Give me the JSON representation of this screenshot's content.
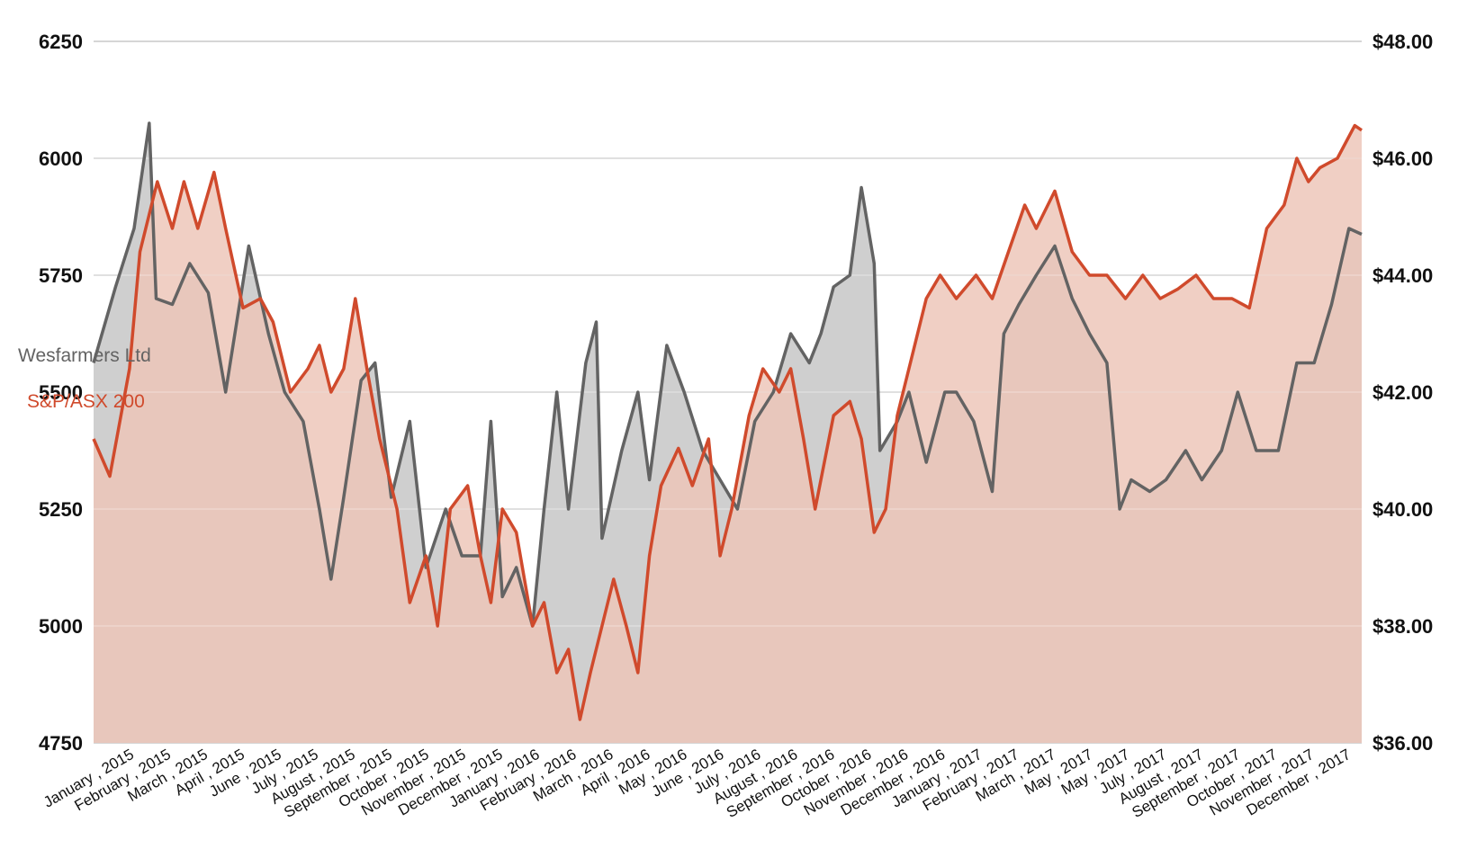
{
  "chart_data": {
    "type": "area",
    "x_ticks": [
      "January , 2015",
      "February , 2015",
      "March , 2015",
      "April , 2015",
      "June , 2015",
      "July , 2015",
      "August , 2015",
      "September , 2015",
      "October , 2015",
      "November , 2015",
      "December , 2015",
      "January , 2016",
      "February , 2016",
      "March , 2016",
      "April , 2016",
      "May , 2016",
      "June , 2016",
      "July , 2016",
      "August , 2016",
      "September , 2016",
      "October , 2016",
      "November , 2016",
      "December , 2016",
      "January , 2017",
      "February , 2017",
      "March , 2017",
      "May , 2017",
      "May , 2017",
      "July , 2017",
      "August , 2017",
      "September , 2017",
      "October , 2017",
      "November , 2017",
      "December , 2017"
    ],
    "y_left": {
      "ticks": [
        "6250",
        "6000",
        "5750",
        "5500",
        "5250",
        "5000",
        "4750"
      ],
      "min": 4750,
      "max": 6250
    },
    "y_right": {
      "ticks": [
        "$48.00",
        "$46.00",
        "$44.00",
        "$42.00",
        "$40.00",
        "$38.00",
        "$36.00"
      ],
      "min": 36,
      "max": 48
    },
    "grid": true,
    "legend_position": "left",
    "x_range": [
      "2015-01-01",
      "2017-12-31"
    ],
    "series": [
      {
        "name": "Wesfarmers Ltd",
        "axis": "right",
        "color": "#636363",
        "area_color": "#cfcfcf",
        "points": [
          [
            "2015-01-01",
            42.5
          ],
          [
            "2015-01-20",
            43.8
          ],
          [
            "2015-02-05",
            44.8
          ],
          [
            "2015-02-18",
            46.6
          ],
          [
            "2015-02-24",
            43.6
          ],
          [
            "2015-03-10",
            43.5
          ],
          [
            "2015-03-25",
            44.2
          ],
          [
            "2015-04-10",
            43.7
          ],
          [
            "2015-04-25",
            42.0
          ],
          [
            "2015-05-15",
            44.5
          ],
          [
            "2015-06-01",
            43.0
          ],
          [
            "2015-06-15",
            42.0
          ],
          [
            "2015-07-01",
            41.5
          ],
          [
            "2015-07-15",
            40.0
          ],
          [
            "2015-07-25",
            38.8
          ],
          [
            "2015-08-05",
            40.2
          ],
          [
            "2015-08-20",
            42.2
          ],
          [
            "2015-09-01",
            42.5
          ],
          [
            "2015-09-15",
            40.2
          ],
          [
            "2015-10-01",
            41.5
          ],
          [
            "2015-10-15",
            39.0
          ],
          [
            "2015-11-01",
            40.0
          ],
          [
            "2015-11-15",
            39.2
          ],
          [
            "2015-12-01",
            39.2
          ],
          [
            "2015-12-10",
            41.5
          ],
          [
            "2015-12-20",
            38.5
          ],
          [
            "2016-01-01",
            39.0
          ],
          [
            "2016-01-15",
            38.0
          ],
          [
            "2016-01-25",
            40.0
          ],
          [
            "2016-02-05",
            42.0
          ],
          [
            "2016-02-15",
            40.0
          ],
          [
            "2016-03-01",
            42.5
          ],
          [
            "2016-03-10",
            43.2
          ],
          [
            "2016-03-15",
            39.5
          ],
          [
            "2016-04-01",
            41.0
          ],
          [
            "2016-04-15",
            42.0
          ],
          [
            "2016-04-25",
            40.5
          ],
          [
            "2016-05-10",
            42.8
          ],
          [
            "2016-05-25",
            42.0
          ],
          [
            "2016-06-10",
            41.0
          ],
          [
            "2016-06-25",
            40.5
          ],
          [
            "2016-07-10",
            40.0
          ],
          [
            "2016-07-25",
            41.5
          ],
          [
            "2016-08-10",
            42.0
          ],
          [
            "2016-08-25",
            43.0
          ],
          [
            "2016-09-10",
            42.5
          ],
          [
            "2016-09-20",
            43.0
          ],
          [
            "2016-10-01",
            43.8
          ],
          [
            "2016-10-15",
            44.0
          ],
          [
            "2016-10-25",
            45.5
          ],
          [
            "2016-11-05",
            44.2
          ],
          [
            "2016-11-10",
            41.0
          ],
          [
            "2016-11-25",
            41.5
          ],
          [
            "2016-12-05",
            42.0
          ],
          [
            "2016-12-20",
            40.8
          ],
          [
            "2017-01-05",
            42.0
          ],
          [
            "2017-01-15",
            42.0
          ],
          [
            "2017-01-30",
            41.5
          ],
          [
            "2017-02-15",
            40.3
          ],
          [
            "2017-02-25",
            43.0
          ],
          [
            "2017-03-10",
            43.5
          ],
          [
            "2017-03-25",
            44.0
          ],
          [
            "2017-04-10",
            44.5
          ],
          [
            "2017-04-25",
            43.6
          ],
          [
            "2017-05-10",
            43.0
          ],
          [
            "2017-05-25",
            42.5
          ],
          [
            "2017-06-05",
            40.0
          ],
          [
            "2017-06-15",
            40.5
          ],
          [
            "2017-07-01",
            40.3
          ],
          [
            "2017-07-15",
            40.5
          ],
          [
            "2017-08-01",
            41.0
          ],
          [
            "2017-08-15",
            40.5
          ],
          [
            "2017-09-01",
            41.0
          ],
          [
            "2017-09-15",
            42.0
          ],
          [
            "2017-10-01",
            41.0
          ],
          [
            "2017-10-20",
            41.0
          ],
          [
            "2017-11-05",
            42.5
          ],
          [
            "2017-11-20",
            42.5
          ],
          [
            "2017-12-05",
            43.5
          ],
          [
            "2017-12-20",
            44.8
          ],
          [
            "2017-12-31",
            44.7
          ]
        ]
      },
      {
        "name": "S&P/ASX 200",
        "axis": "left",
        "color": "#d04a2c",
        "area_color": "#edc5b7",
        "points": [
          [
            "2015-01-01",
            5400
          ],
          [
            "2015-01-15",
            5320
          ],
          [
            "2015-02-01",
            5550
          ],
          [
            "2015-02-10",
            5800
          ],
          [
            "2015-02-25",
            5950
          ],
          [
            "2015-03-10",
            5850
          ],
          [
            "2015-03-20",
            5950
          ],
          [
            "2015-04-01",
            5850
          ],
          [
            "2015-04-15",
            5970
          ],
          [
            "2015-04-25",
            5850
          ],
          [
            "2015-05-10",
            5680
          ],
          [
            "2015-05-25",
            5700
          ],
          [
            "2015-06-05",
            5650
          ],
          [
            "2015-06-20",
            5500
          ],
          [
            "2015-07-05",
            5550
          ],
          [
            "2015-07-15",
            5600
          ],
          [
            "2015-07-25",
            5500
          ],
          [
            "2015-08-05",
            5550
          ],
          [
            "2015-08-15",
            5700
          ],
          [
            "2015-08-25",
            5550
          ],
          [
            "2015-09-05",
            5400
          ],
          [
            "2015-09-20",
            5250
          ],
          [
            "2015-10-01",
            5050
          ],
          [
            "2015-10-15",
            5150
          ],
          [
            "2015-10-25",
            5000
          ],
          [
            "2015-11-05",
            5250
          ],
          [
            "2015-11-20",
            5300
          ],
          [
            "2015-12-01",
            5150
          ],
          [
            "2015-12-10",
            5050
          ],
          [
            "2015-12-20",
            5250
          ],
          [
            "2016-01-01",
            5200
          ],
          [
            "2016-01-15",
            5000
          ],
          [
            "2016-01-25",
            5050
          ],
          [
            "2016-02-05",
            4900
          ],
          [
            "2016-02-15",
            4950
          ],
          [
            "2016-02-25",
            4800
          ],
          [
            "2016-03-05",
            4900
          ],
          [
            "2016-03-15",
            5000
          ],
          [
            "2016-03-25",
            5100
          ],
          [
            "2016-04-05",
            5000
          ],
          [
            "2016-04-15",
            4900
          ],
          [
            "2016-04-25",
            5150
          ],
          [
            "2016-05-05",
            5300
          ],
          [
            "2016-05-20",
            5380
          ],
          [
            "2016-06-01",
            5300
          ],
          [
            "2016-06-15",
            5400
          ],
          [
            "2016-06-25",
            5150
          ],
          [
            "2016-07-05",
            5250
          ],
          [
            "2016-07-20",
            5450
          ],
          [
            "2016-08-01",
            5550
          ],
          [
            "2016-08-15",
            5500
          ],
          [
            "2016-08-25",
            5550
          ],
          [
            "2016-09-05",
            5400
          ],
          [
            "2016-09-15",
            5250
          ],
          [
            "2016-10-01",
            5450
          ],
          [
            "2016-10-15",
            5480
          ],
          [
            "2016-10-25",
            5400
          ],
          [
            "2016-11-05",
            5200
          ],
          [
            "2016-11-15",
            5250
          ],
          [
            "2016-11-25",
            5450
          ],
          [
            "2016-12-05",
            5550
          ],
          [
            "2016-12-20",
            5700
          ],
          [
            "2017-01-01",
            5750
          ],
          [
            "2017-01-15",
            5700
          ],
          [
            "2017-02-01",
            5750
          ],
          [
            "2017-02-15",
            5700
          ],
          [
            "2017-03-01",
            5800
          ],
          [
            "2017-03-15",
            5900
          ],
          [
            "2017-03-25",
            5850
          ],
          [
            "2017-04-10",
            5930
          ],
          [
            "2017-04-25",
            5800
          ],
          [
            "2017-05-10",
            5750
          ],
          [
            "2017-05-25",
            5750
          ],
          [
            "2017-06-10",
            5700
          ],
          [
            "2017-06-25",
            5750
          ],
          [
            "2017-07-10",
            5700
          ],
          [
            "2017-07-25",
            5720
          ],
          [
            "2017-08-10",
            5750
          ],
          [
            "2017-08-25",
            5700
          ],
          [
            "2017-09-10",
            5700
          ],
          [
            "2017-09-25",
            5680
          ],
          [
            "2017-10-10",
            5850
          ],
          [
            "2017-10-25",
            5900
          ],
          [
            "2017-11-05",
            6000
          ],
          [
            "2017-11-15",
            5950
          ],
          [
            "2017-11-25",
            5980
          ],
          [
            "2017-12-10",
            6000
          ],
          [
            "2017-12-25",
            6070
          ],
          [
            "2017-12-31",
            6060
          ]
        ]
      }
    ]
  }
}
